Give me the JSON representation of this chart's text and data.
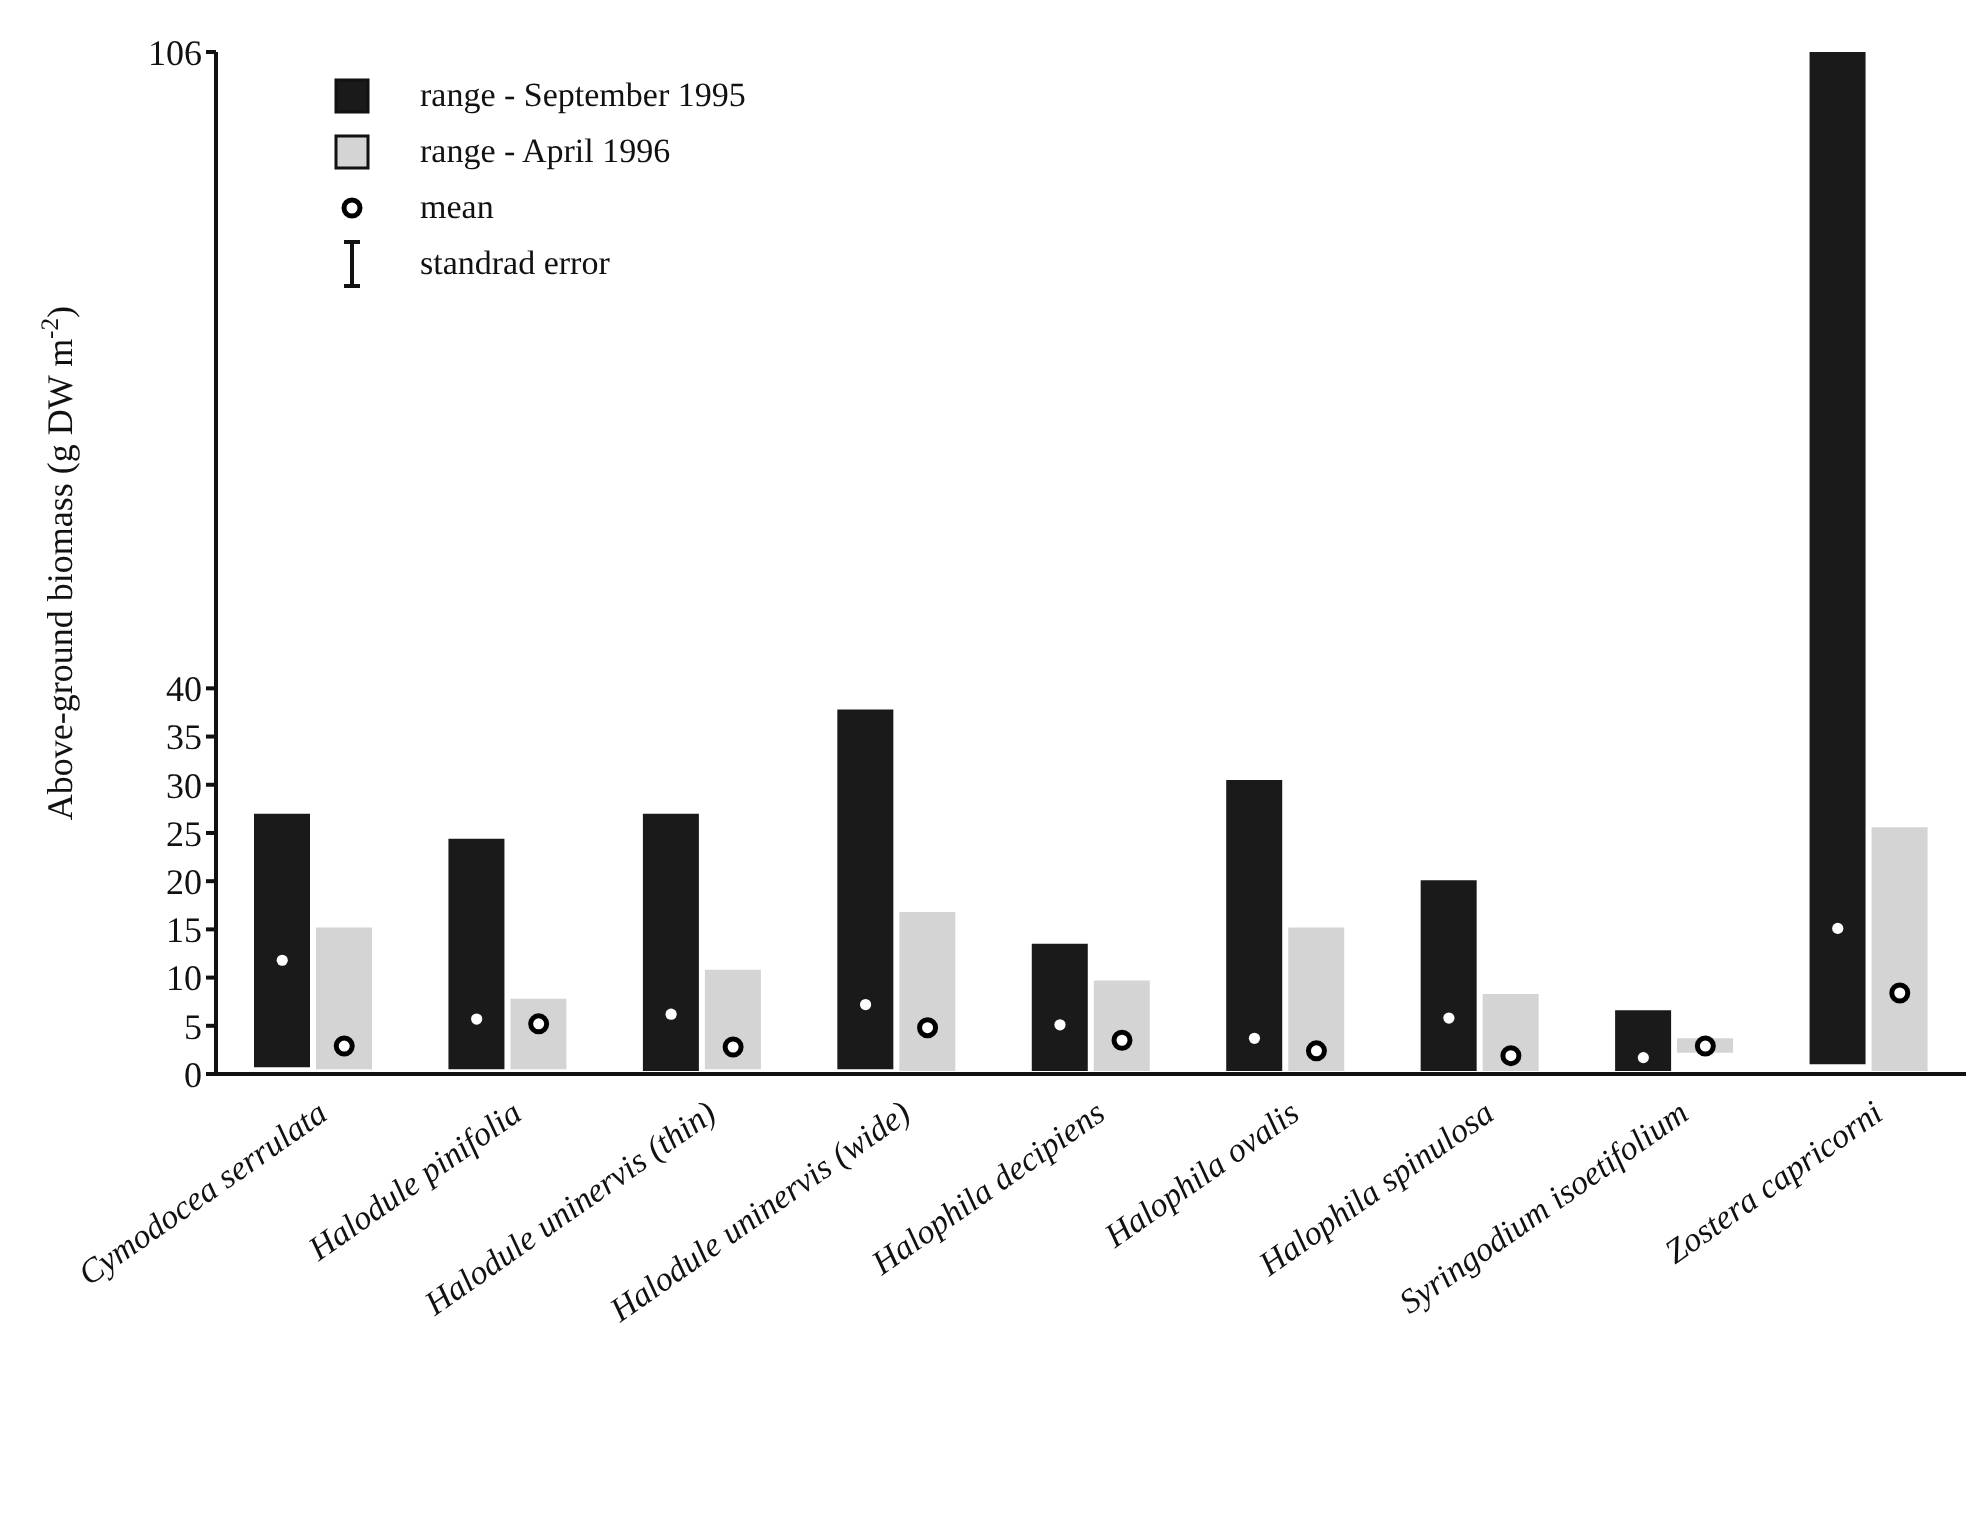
{
  "chart_data": {
    "type": "bar",
    "ylabel": "Above-ground biomass (g DW m$^{-2}$)",
    "categories": [
      "Cymodocea serrulata",
      "Halodule pinifolia",
      "Halodule uninervis (thin)",
      "Halodule uninervis (wide)",
      "Halophila decipiens",
      "Halophila ovalis",
      "Halophila spinulosa",
      "Syringodium isoetifolium",
      "Zostera capricorni"
    ],
    "series": [
      {
        "name": "range - September 1995",
        "color": "#1a1a1a",
        "base": [
          0.7,
          0.5,
          0.3,
          0.5,
          0.3,
          0.3,
          0.3,
          0.3,
          1.0
        ],
        "values": [
          26.3,
          23.9,
          26.7,
          37.3,
          13.2,
          30.2,
          19.8,
          6.3,
          105.0
        ]
      },
      {
        "name": "range - April 1996",
        "color": "#d4d4d4",
        "base": [
          0.5,
          0.5,
          0.5,
          0.3,
          0.3,
          0.3,
          0.3,
          2.2,
          0.3
        ],
        "values": [
          14.7,
          7.3,
          10.3,
          16.5,
          9.4,
          14.9,
          8.0,
          1.5,
          25.3
        ]
      },
      {
        "type": "scatter",
        "name": "mean",
        "color": "#000000",
        "x": [
          "Cymodocea serrulata",
          "Halodule pinifolia",
          "Halodule uninervis (thin)",
          "Halodule uninervis (wide)",
          "Halophila decipiens",
          "Halophila ovalis",
          "Halophila spinulosa",
          "Syringodium isoetifolium",
          "Zostera capricorni"
        ],
        "values": [
          2.9,
          5.2,
          2.8,
          4.8,
          3.5,
          2.4,
          1.9,
          2.9,
          8.4
        ]
      },
      {
        "type": "scatter",
        "color": "#ffffff",
        "x": [
          "Cymodocea serrulata",
          "Halodule pinifolia",
          "Halodule uninervis (thin)",
          "Halodule uninervis (wide)",
          "Halophila decipiens",
          "Halophila ovalis",
          "Halophila spinulosa",
          "Syringodium isoetifolium",
          "Zostera capricorni"
        ],
        "values": [
          11.8,
          5.7,
          6.2,
          7.2,
          5.1,
          3.7,
          5.8,
          1.7,
          15.1
        ]
      }
    ],
    "ylim": [
      0,
      106
    ],
    "yticks": [
      0,
      5,
      10,
      15,
      20,
      25,
      30,
      35,
      40,
      106
    ],
    "marker": "circle",
    "legend": "top left",
    "annotations": [
      "standrad error"
    ]
  }
}
